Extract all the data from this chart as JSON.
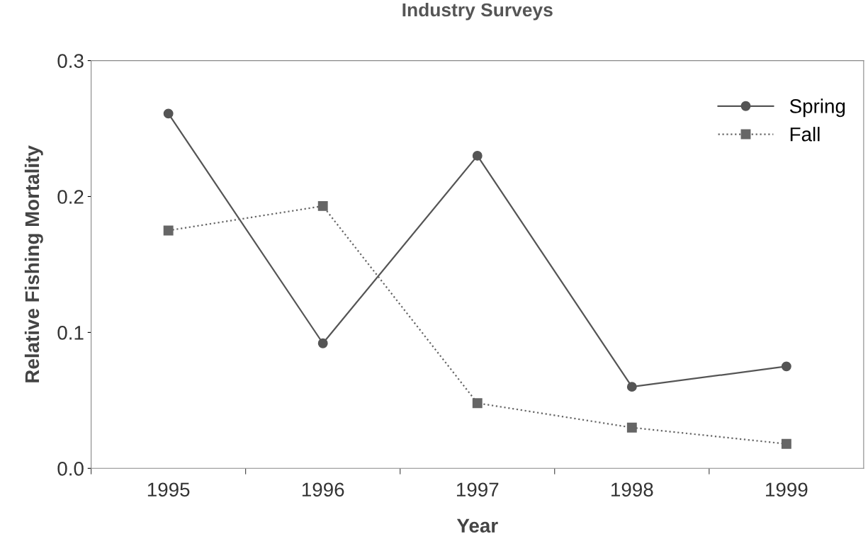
{
  "chart_data": {
    "type": "line",
    "title": "Industry Surveys",
    "xlabel": "Year",
    "ylabel": "Relative Fishing Mortality",
    "categories": [
      "1995",
      "1996",
      "1997",
      "1998",
      "1999"
    ],
    "series": [
      {
        "name": "Spring",
        "color": "#555555",
        "marker": "circle",
        "line_style": "solid",
        "values": [
          0.261,
          0.092,
          0.23,
          0.06,
          0.075
        ]
      },
      {
        "name": "Fall",
        "color": "#666666",
        "marker": "square",
        "line_style": "dotted",
        "values": [
          0.175,
          0.193,
          0.048,
          0.03,
          0.018
        ]
      }
    ],
    "ylim": [
      0,
      0.3
    ],
    "yticks": [
      {
        "value": 0,
        "label": "0.0"
      },
      {
        "value": 0.1,
        "label": "0.1"
      },
      {
        "value": 0.2,
        "label": "0.2"
      },
      {
        "value": 0.3,
        "label": "0.3"
      }
    ],
    "grid": false,
    "legend": "top right"
  }
}
